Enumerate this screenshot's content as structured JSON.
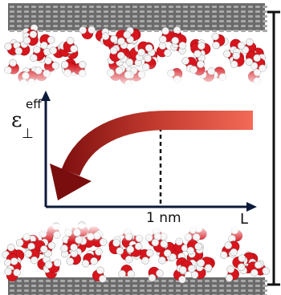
{
  "axis": {
    "y_label": {
      "symbol": "ε",
      "superscript": "eff",
      "subscript": "⊥"
    },
    "x_label": "L",
    "marker_label": "1 nm"
  }
}
